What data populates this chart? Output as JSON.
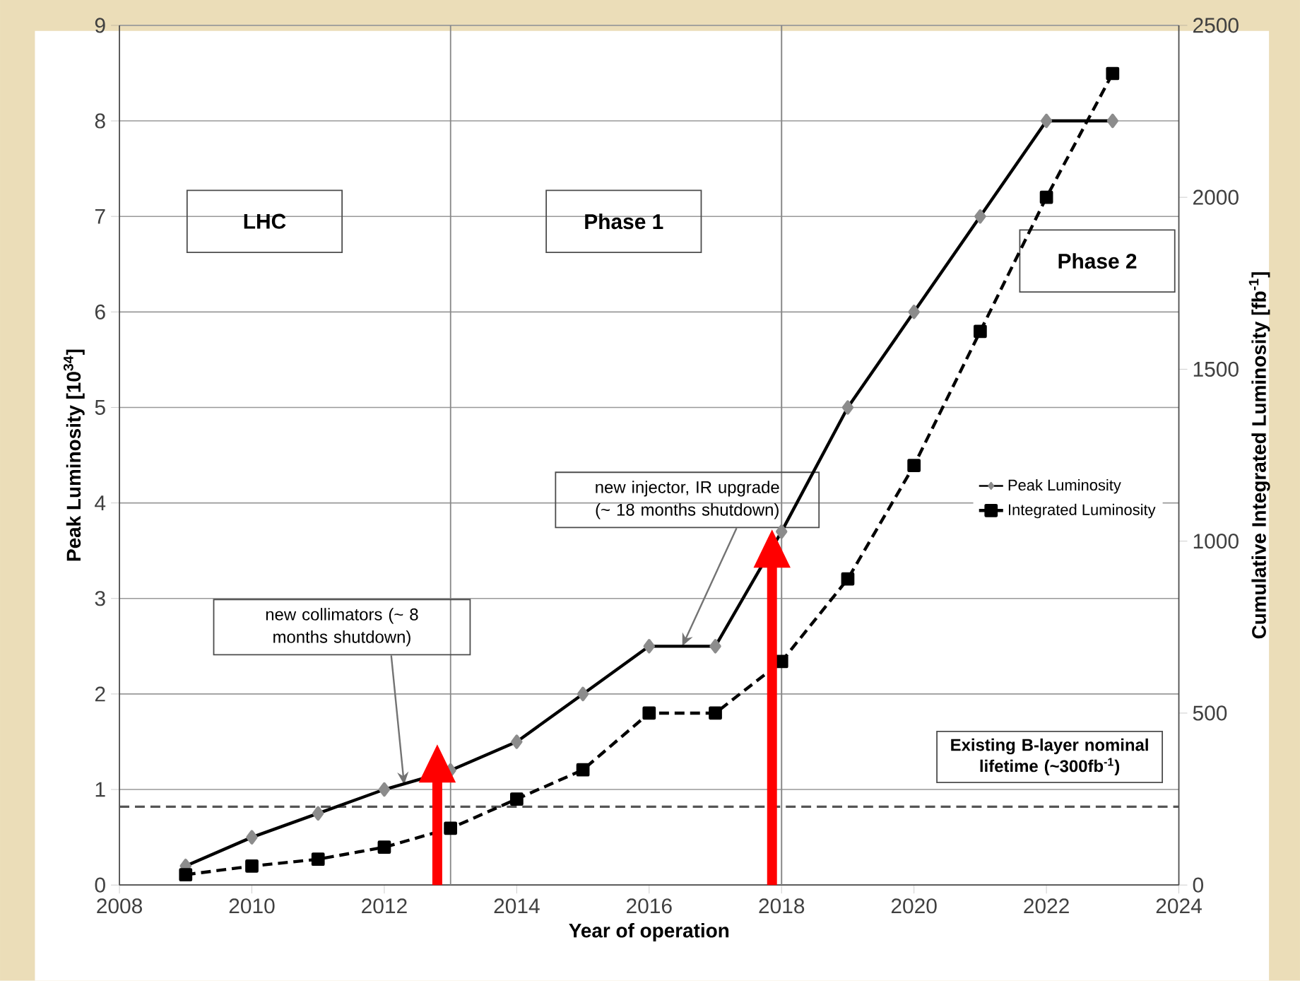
{
  "chart_data": {
    "type": "line",
    "xlabel": "Year of operation",
    "ylabel": "Peak Luminosity [10$^{34}$]",
    "y2label": "Cumulative Integrated Luminosity [fb$^{-1}$]",
    "x": [
      2009,
      2010,
      2011,
      2012,
      2013,
      2014,
      2015,
      2016,
      2017,
      2018,
      2019,
      2020,
      2021,
      2022,
      2023
    ],
    "series": [
      {
        "name": "Peak Luminosity",
        "color": "#000000",
        "marker": "diamond",
        "line_style": "solid",
        "values": [
          0.2,
          0.5,
          0.75,
          1.0,
          1.2,
          1.5,
          2.0,
          2.5,
          2.5,
          3.7,
          5,
          6,
          7,
          8,
          8
        ]
      },
      {
        "name": "Integrated Luminosity",
        "color": "#000000",
        "marker": "square",
        "line_style": "dashed",
        "axis": "y2",
        "values": [
          30,
          55,
          75,
          110,
          165,
          250,
          335,
          500,
          500,
          650,
          890,
          1220,
          1610,
          2000,
          2360
        ]
      }
    ],
    "xlim": [
      2008,
      2024
    ],
    "xticks": [
      2008,
      2010,
      2012,
      2014,
      2016,
      2018,
      2020,
      2022,
      2024
    ],
    "ylim": [
      0,
      9
    ],
    "yticks": [
      0,
      1,
      2,
      3,
      4,
      5,
      6,
      7,
      8,
      9
    ],
    "y2lim": [
      0,
      2500
    ],
    "y2ticks": [
      0,
      500,
      1000,
      1500,
      2000,
      2500
    ],
    "grid": "y",
    "legend": "right",
    "ref_lines": [
      {
        "axis": "y",
        "value": 0.82,
        "label": "Existing B-layer nominal lifetime (~300fb$^{-1}$)",
        "color": "#555555",
        "line_style": "dashed"
      },
      {
        "axis": "x",
        "value": 2013,
        "color": "#888888",
        "line_style": "solid"
      },
      {
        "axis": "x",
        "value": 2018,
        "color": "#888888",
        "line_style": "solid"
      }
    ],
    "annotations": [
      "LHC",
      "Phase 1",
      "Phase 2",
      {
        "text": "new collimators (~ 8 months shutdown)",
        "x": 2012.3,
        "y": 1.05
      },
      {
        "text": "new injector, IR upgrade (~ 18 months shutdown)",
        "x": 2016.5,
        "y": 2.5
      }
    ]
  }
}
